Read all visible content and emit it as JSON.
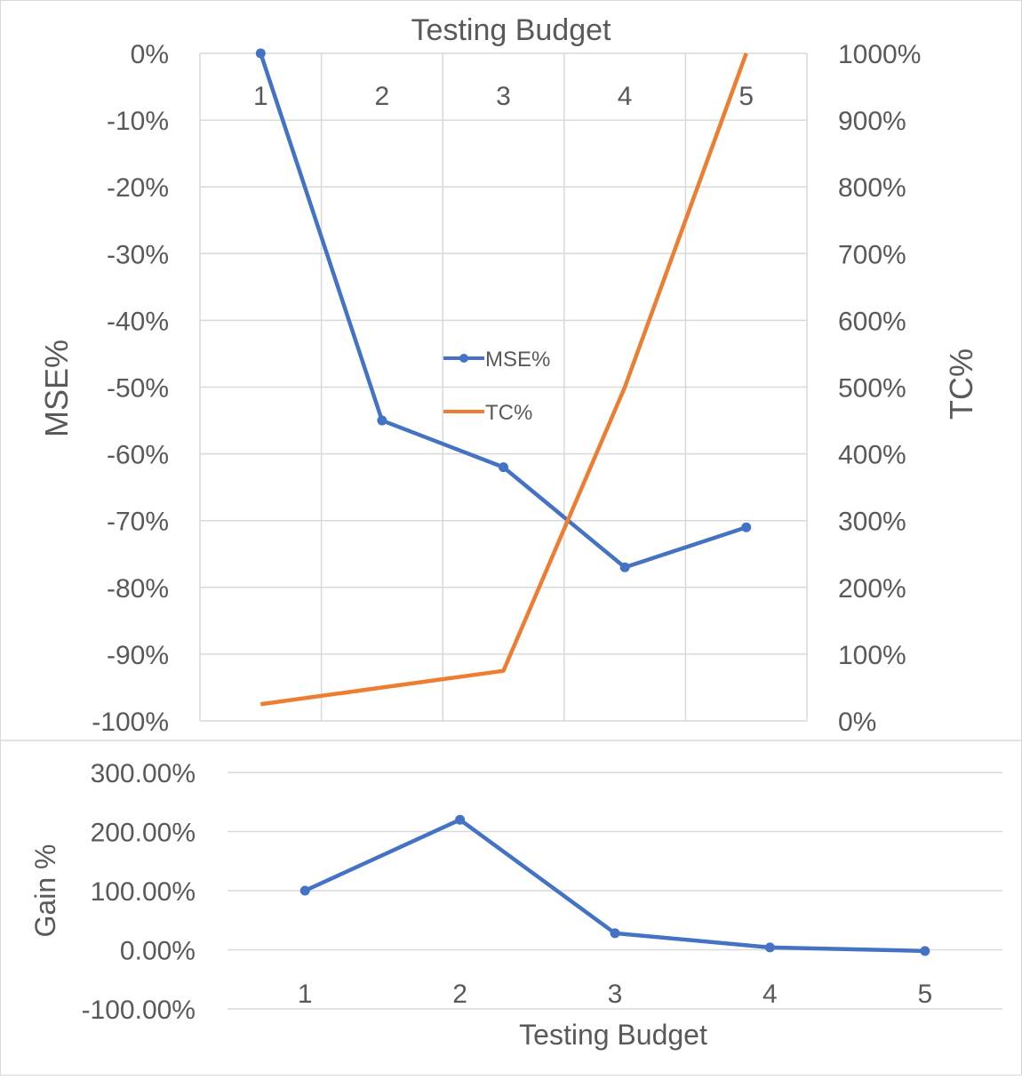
{
  "chart_data": [
    {
      "type": "line",
      "title": "Testing Budget",
      "ylabel": "MSE%",
      "y2label": "TC%",
      "categories": [
        "1",
        "2",
        "3",
        "4",
        "5"
      ],
      "ylim": [
        -100,
        0
      ],
      "y2lim": [
        0,
        1000
      ],
      "yticks": [
        "0%",
        "-10%",
        "-20%",
        "-30%",
        "-40%",
        "-50%",
        "-60%",
        "-70%",
        "-80%",
        "-90%",
        "-100%"
      ],
      "y2ticks": [
        "1000%",
        "900%",
        "800%",
        "700%",
        "600%",
        "500%",
        "400%",
        "300%",
        "200%",
        "100%",
        "0%"
      ],
      "grid": true,
      "legend": "center",
      "series": [
        {
          "name": "MSE%",
          "axis": "left",
          "color": "#4472C4",
          "markers": true,
          "x": [
            1.0,
            2.0,
            3.0,
            4.0,
            5.0
          ],
          "values": [
            0,
            -55,
            -62,
            -77,
            -71
          ]
        },
        {
          "name": "TC%",
          "axis": "right",
          "color": "#ED7D31",
          "markers": false,
          "x": [
            1.0,
            3.0,
            4.0,
            5.0
          ],
          "values": [
            25,
            75,
            500,
            1000
          ]
        }
      ]
    },
    {
      "type": "line",
      "title": "",
      "xlabel": "Testing Budget",
      "ylabel": "Gain %",
      "categories": [
        "1",
        "2",
        "3",
        "4",
        "5"
      ],
      "ylim": [
        -100,
        300
      ],
      "yticks": [
        "300.00%",
        "200.00%",
        "100.00%",
        "0.00%",
        "-100.00%"
      ],
      "grid": true,
      "series": [
        {
          "color": "#4472C4",
          "markers": true,
          "values": [
            100,
            220,
            28,
            4,
            -2
          ]
        }
      ]
    }
  ]
}
